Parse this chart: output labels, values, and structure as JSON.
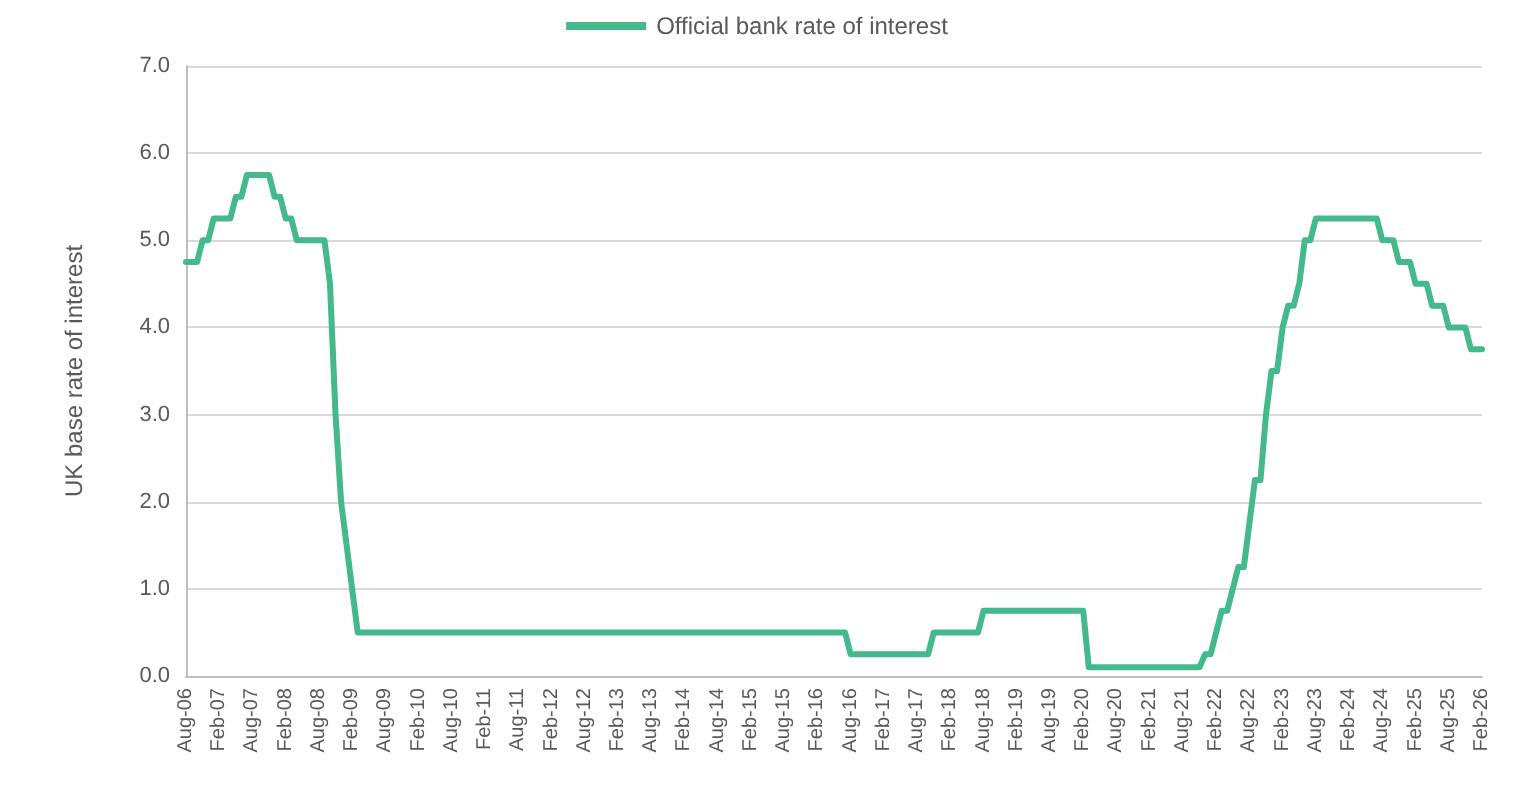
{
  "chart_data": {
    "type": "line",
    "ylabel": "UK base rate of interest",
    "categories": [
      "Aug-06",
      null,
      null,
      null,
      null,
      null,
      "Feb-07",
      null,
      null,
      null,
      null,
      null,
      "Aug-07",
      null,
      null,
      null,
      null,
      null,
      "Feb-08",
      null,
      null,
      null,
      null,
      null,
      "Aug-08",
      null,
      null,
      null,
      null,
      null,
      "Feb-09",
      null,
      null,
      null,
      null,
      null,
      "Aug-09",
      null,
      null,
      null,
      null,
      null,
      "Feb-10",
      null,
      null,
      null,
      null,
      null,
      "Aug-10",
      null,
      null,
      null,
      null,
      null,
      "Feb-11",
      null,
      null,
      null,
      null,
      null,
      "Aug-11",
      null,
      null,
      null,
      null,
      null,
      "Feb-12",
      null,
      null,
      null,
      null,
      null,
      "Aug-12",
      null,
      null,
      null,
      null,
      null,
      "Feb-13",
      null,
      null,
      null,
      null,
      null,
      "Aug-13",
      null,
      null,
      null,
      null,
      null,
      "Feb-14",
      null,
      null,
      null,
      null,
      null,
      "Aug-14",
      null,
      null,
      null,
      null,
      null,
      "Feb-15",
      null,
      null,
      null,
      null,
      null,
      "Aug-15",
      null,
      null,
      null,
      null,
      null,
      "Feb-16",
      null,
      null,
      null,
      null,
      null,
      "Aug-16",
      null,
      null,
      null,
      null,
      null,
      "Feb-17",
      null,
      null,
      null,
      null,
      null,
      "Aug-17",
      null,
      null,
      null,
      null,
      null,
      "Feb-18",
      null,
      null,
      null,
      null,
      null,
      "Aug-18",
      null,
      null,
      null,
      null,
      null,
      "Feb-19",
      null,
      null,
      null,
      null,
      null,
      "Aug-19",
      null,
      null,
      null,
      null,
      null,
      "Feb-20",
      null,
      null,
      null,
      null,
      null,
      "Aug-20",
      null,
      null,
      null,
      null,
      null,
      "Feb-21",
      null,
      null,
      null,
      null,
      null,
      "Aug-21",
      null,
      null,
      null,
      null,
      null,
      "Feb-22",
      null,
      null,
      null,
      null,
      null,
      "Aug-22",
      null,
      null,
      null,
      null,
      null,
      "Feb-23",
      null,
      null,
      null,
      null,
      null,
      "Aug-23",
      null,
      null,
      null,
      null,
      null,
      "Feb-24",
      null,
      null,
      null,
      null,
      null,
      "Aug-24",
      null,
      null,
      null,
      null,
      null,
      "Feb-25",
      null,
      null,
      null,
      null,
      null,
      "Aug-25",
      null,
      null,
      null,
      null,
      null,
      "Feb-26"
    ],
    "series": [
      {
        "name": "Official bank rate of interest",
        "color": "#43b98c",
        "values": [
          4.75,
          4.75,
          4.75,
          5.0,
          5.0,
          5.25,
          5.25,
          5.25,
          5.25,
          5.5,
          5.5,
          5.75,
          5.75,
          5.75,
          5.75,
          5.75,
          5.5,
          5.5,
          5.25,
          5.25,
          5.0,
          5.0,
          5.0,
          5.0,
          5.0,
          5.0,
          4.5,
          3.0,
          2.0,
          1.5,
          1.0,
          0.5,
          0.5,
          0.5,
          0.5,
          0.5,
          0.5,
          0.5,
          0.5,
          0.5,
          0.5,
          0.5,
          0.5,
          0.5,
          0.5,
          0.5,
          0.5,
          0.5,
          0.5,
          0.5,
          0.5,
          0.5,
          0.5,
          0.5,
          0.5,
          0.5,
          0.5,
          0.5,
          0.5,
          0.5,
          0.5,
          0.5,
          0.5,
          0.5,
          0.5,
          0.5,
          0.5,
          0.5,
          0.5,
          0.5,
          0.5,
          0.5,
          0.5,
          0.5,
          0.5,
          0.5,
          0.5,
          0.5,
          0.5,
          0.5,
          0.5,
          0.5,
          0.5,
          0.5,
          0.5,
          0.5,
          0.5,
          0.5,
          0.5,
          0.5,
          0.5,
          0.5,
          0.5,
          0.5,
          0.5,
          0.5,
          0.5,
          0.5,
          0.5,
          0.5,
          0.5,
          0.5,
          0.5,
          0.5,
          0.5,
          0.5,
          0.5,
          0.5,
          0.5,
          0.5,
          0.5,
          0.5,
          0.5,
          0.5,
          0.5,
          0.5,
          0.5,
          0.5,
          0.5,
          0.5,
          0.25,
          0.25,
          0.25,
          0.25,
          0.25,
          0.25,
          0.25,
          0.25,
          0.25,
          0.25,
          0.25,
          0.25,
          0.25,
          0.25,
          0.25,
          0.5,
          0.5,
          0.5,
          0.5,
          0.5,
          0.5,
          0.5,
          0.5,
          0.5,
          0.75,
          0.75,
          0.75,
          0.75,
          0.75,
          0.75,
          0.75,
          0.75,
          0.75,
          0.75,
          0.75,
          0.75,
          0.75,
          0.75,
          0.75,
          0.75,
          0.75,
          0.75,
          0.75,
          0.1,
          0.1,
          0.1,
          0.1,
          0.1,
          0.1,
          0.1,
          0.1,
          0.1,
          0.1,
          0.1,
          0.1,
          0.1,
          0.1,
          0.1,
          0.1,
          0.1,
          0.1,
          0.1,
          0.1,
          0.1,
          0.25,
          0.25,
          0.5,
          0.75,
          0.75,
          1.0,
          1.25,
          1.25,
          1.75,
          2.25,
          2.25,
          3.0,
          3.5,
          3.5,
          4.0,
          4.25,
          4.25,
          4.5,
          5.0,
          5.0,
          5.25,
          5.25,
          5.25,
          5.25,
          5.25,
          5.25,
          5.25,
          5.25,
          5.25,
          5.25,
          5.25,
          5.25,
          5.0,
          5.0,
          5.0,
          4.75,
          4.75,
          4.75,
          4.5,
          4.5,
          4.5,
          4.25,
          4.25,
          4.25,
          4.0,
          4.0,
          4.0,
          4.0,
          3.75,
          3.75,
          3.75
        ]
      }
    ],
    "ylim": [
      0,
      7
    ],
    "yticks": [
      {
        "value": 0,
        "label": "0.0"
      },
      {
        "value": 1,
        "label": "1.0"
      },
      {
        "value": 2,
        "label": "2.0"
      },
      {
        "value": 3,
        "label": "3.0"
      },
      {
        "value": 4,
        "label": "4.0"
      },
      {
        "value": 5,
        "label": "5.0"
      },
      {
        "value": 6,
        "label": "6.0"
      },
      {
        "value": 7,
        "label": "7.0"
      }
    ],
    "grid": "y",
    "legend": "top",
    "marker": "none",
    "line_style": "solid"
  }
}
